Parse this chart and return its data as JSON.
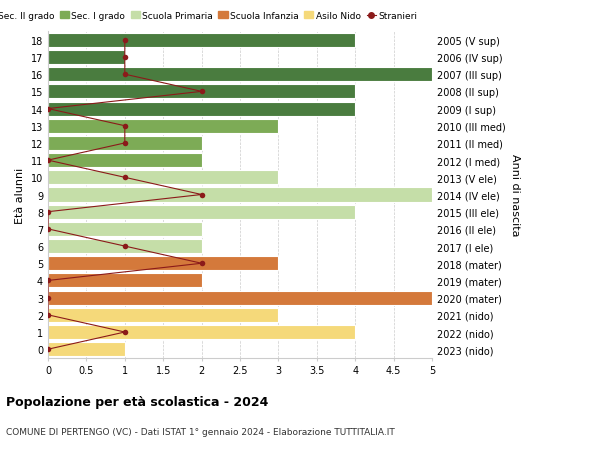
{
  "ages": [
    18,
    17,
    16,
    15,
    14,
    13,
    12,
    11,
    10,
    9,
    8,
    7,
    6,
    5,
    4,
    3,
    2,
    1,
    0
  ],
  "years": [
    "2005 (V sup)",
    "2006 (IV sup)",
    "2007 (III sup)",
    "2008 (II sup)",
    "2009 (I sup)",
    "2010 (III med)",
    "2011 (II med)",
    "2012 (I med)",
    "2013 (V ele)",
    "2014 (IV ele)",
    "2015 (III ele)",
    "2016 (II ele)",
    "2017 (I ele)",
    "2018 (mater)",
    "2019 (mater)",
    "2020 (mater)",
    "2021 (nido)",
    "2022 (nido)",
    "2023 (nido)"
  ],
  "bar_values": [
    4,
    1,
    5,
    4,
    4,
    3,
    2,
    2,
    3,
    5,
    4,
    2,
    2,
    3,
    2,
    5,
    3,
    4,
    1
  ],
  "bar_colors": [
    "#4a7c3f",
    "#4a7c3f",
    "#4a7c3f",
    "#4a7c3f",
    "#4a7c3f",
    "#7dab56",
    "#7dab56",
    "#7dab56",
    "#c5dea8",
    "#c5dea8",
    "#c5dea8",
    "#c5dea8",
    "#c5dea8",
    "#d4793b",
    "#d4793b",
    "#d4793b",
    "#f5d97a",
    "#f5d97a",
    "#f5d97a"
  ],
  "stranieri_x": [
    1,
    1,
    1,
    2,
    0,
    1,
    1,
    0,
    1,
    2,
    0,
    0,
    1,
    2,
    0,
    0,
    0,
    1,
    0
  ],
  "legend_labels": [
    "Sec. II grado",
    "Sec. I grado",
    "Scuola Primaria",
    "Scuola Infanzia",
    "Asilo Nido",
    "Stranieri"
  ],
  "legend_colors": [
    "#4a7c3f",
    "#7dab56",
    "#c5dea8",
    "#d4793b",
    "#f5d97a",
    "#8b1a1a"
  ],
  "title": "Popolazione per età scolastica - 2024",
  "subtitle": "COMUNE DI PERTENGO (VC) - Dati ISTAT 1° gennaio 2024 - Elaborazione TUTTITALIA.IT",
  "ylabel_left": "Età alunni",
  "ylabel_right": "Anni di nascita",
  "xlim": [
    0,
    5.0
  ],
  "xticks": [
    0,
    0.5,
    1.0,
    1.5,
    2.0,
    2.5,
    3.0,
    3.5,
    4.0,
    4.5,
    5.0
  ],
  "stranieri_line_color": "#8b1a1a",
  "bg_color": "#ffffff",
  "bar_height": 0.82
}
